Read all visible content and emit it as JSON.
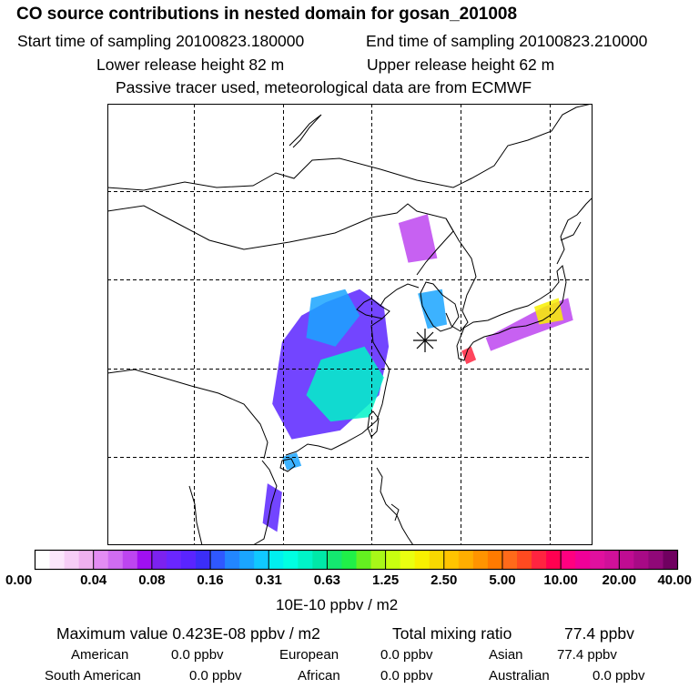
{
  "header": {
    "title": "CO  source contributions in nested domain for gosan_201008",
    "start_label": "Start time of sampling 20100823.180000",
    "end_label": "End time of sampling 20100823.210000",
    "lower_label": "Lower release height   82 m",
    "upper_label": "Upper release height   62 m",
    "note": "Passive tracer used, meteorological data are from ECMWF"
  },
  "colorbar": {
    "unit": "10E-10 ppbv / m2",
    "ticks": [
      "0.00",
      "0.04",
      "0.08",
      "0.16",
      "0.31",
      "0.63",
      "1.25",
      "2.50",
      "5.00",
      "10.00",
      "20.00",
      "40.00"
    ],
    "colors": [
      [
        "#ffffff",
        "#fbe6fb",
        "#f6cdf6",
        "#efb0ef"
      ],
      [
        "#e38cf3",
        "#d06cf2",
        "#bd45f0",
        "#a010f2"
      ],
      [
        "#7c22ef",
        "#6a26ff",
        "#5a24ff",
        "#3b2ef8"
      ],
      [
        "#2f58ff",
        "#2286ff",
        "#1aa5ff",
        "#10c8ff"
      ],
      [
        "#00f0f0",
        "#00ffe2",
        "#00f4c8",
        "#00e8a8"
      ],
      [
        "#14e870",
        "#20f048",
        "#64f020",
        "#a8f818"
      ],
      [
        "#c8ff10",
        "#eaff10",
        "#f8f000",
        "#f8d800"
      ],
      [
        "#ffc400",
        "#ffae00",
        "#ff9400",
        "#ff7a00"
      ],
      [
        "#ff6a1a",
        "#ff4a20",
        "#ff2440",
        "#ff0050"
      ],
      [
        "#ff0080",
        "#f00098",
        "#e0109e",
        "#d0109a"
      ],
      [
        "#c00c92",
        "#a80a86",
        "#900878",
        "#700060"
      ]
    ]
  },
  "stats": {
    "max_label": "Maximum value  0.423E-08 ppbv / m2",
    "total_label": "Total mixing ratio",
    "total_value": "77.4 ppbv"
  },
  "regions": [
    {
      "name": "American",
      "value": "0.0 ppbv"
    },
    {
      "name": "European",
      "value": "0.0 ppbv"
    },
    {
      "name": "Asian",
      "value": "77.4 ppbv"
    },
    {
      "name": "South American",
      "value": "0.0 ppbv"
    },
    {
      "name": "African",
      "value": "0.0 ppbv"
    },
    {
      "name": "Australian",
      "value": "0.0 ppbv"
    }
  ],
  "map": {
    "receptor": "Gosan",
    "plumes": [
      {
        "lvl": 2,
        "pts": [
          [
            0.45,
            0.45
          ],
          [
            0.52,
            0.42
          ],
          [
            0.57,
            0.46
          ],
          [
            0.58,
            0.55
          ],
          [
            0.56,
            0.66
          ],
          [
            0.48,
            0.74
          ],
          [
            0.38,
            0.76
          ],
          [
            0.34,
            0.68
          ],
          [
            0.36,
            0.54
          ],
          [
            0.4,
            0.48
          ]
        ]
      },
      {
        "lvl": 3,
        "pts": [
          [
            0.42,
            0.44
          ],
          [
            0.49,
            0.42
          ],
          [
            0.52,
            0.48
          ],
          [
            0.47,
            0.55
          ],
          [
            0.41,
            0.53
          ]
        ]
      },
      {
        "lvl": 4,
        "pts": [
          [
            0.44,
            0.58
          ],
          [
            0.53,
            0.55
          ],
          [
            0.57,
            0.62
          ],
          [
            0.54,
            0.71
          ],
          [
            0.46,
            0.72
          ],
          [
            0.41,
            0.66
          ]
        ]
      },
      {
        "lvl": 1,
        "pts": [
          [
            0.78,
            0.53
          ],
          [
            0.9,
            0.46
          ],
          [
            0.95,
            0.44
          ],
          [
            0.96,
            0.49
          ],
          [
            0.86,
            0.53
          ],
          [
            0.79,
            0.56
          ]
        ]
      },
      {
        "lvl": 6,
        "pts": [
          [
            0.88,
            0.46
          ],
          [
            0.93,
            0.44
          ],
          [
            0.94,
            0.49
          ],
          [
            0.89,
            0.5
          ]
        ]
      },
      {
        "lvl": 3,
        "pts": [
          [
            0.64,
            0.43
          ],
          [
            0.69,
            0.42
          ],
          [
            0.7,
            0.5
          ],
          [
            0.66,
            0.51
          ]
        ]
      },
      {
        "lvl": 1,
        "pts": [
          [
            0.6,
            0.27
          ],
          [
            0.66,
            0.25
          ],
          [
            0.68,
            0.35
          ],
          [
            0.62,
            0.36
          ]
        ]
      },
      {
        "lvl": 3,
        "pts": [
          [
            0.36,
            0.8
          ],
          [
            0.39,
            0.79
          ],
          [
            0.4,
            0.82
          ],
          [
            0.37,
            0.83
          ]
        ]
      },
      {
        "lvl": 2,
        "pts": [
          [
            0.33,
            0.86
          ],
          [
            0.36,
            0.88
          ],
          [
            0.35,
            0.97
          ],
          [
            0.32,
            0.95
          ]
        ]
      },
      {
        "lvl": 8,
        "pts": [
          [
            0.73,
            0.56
          ],
          [
            0.75,
            0.55
          ],
          [
            0.76,
            0.58
          ],
          [
            0.74,
            0.59
          ]
        ]
      }
    ]
  }
}
